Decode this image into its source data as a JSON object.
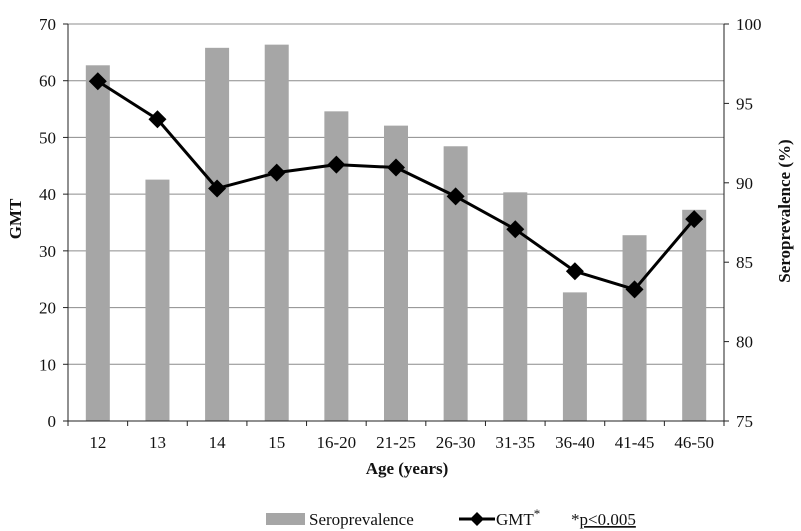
{
  "chart_data": {
    "type": "bar",
    "categories": [
      "12",
      "13",
      "14",
      "15",
      "16-20",
      "21-25",
      "26-30",
      "31-35",
      "36-40",
      "41-45",
      "46-50"
    ],
    "series": [
      {
        "name": "Seroprevalence",
        "type": "bar",
        "axis": "right",
        "values": [
          97.4,
          90.2,
          98.5,
          98.7,
          94.5,
          93.6,
          92.3,
          89.4,
          83.1,
          86.7,
          88.3
        ]
      },
      {
        "name": "GMT",
        "type": "line",
        "axis": "left",
        "marker": "diamond",
        "values": [
          59.9,
          53.2,
          41.0,
          43.8,
          45.2,
          44.7,
          39.6,
          33.8,
          26.4,
          23.2,
          35.6
        ]
      }
    ],
    "xlabel": "Age (years)",
    "ylabel": "GMT",
    "y2label": "Seroprevalence (%)",
    "ylim": [
      0,
      70
    ],
    "y2lim": [
      75,
      100
    ],
    "yticks": [
      "0",
      "10",
      "20",
      "30",
      "40",
      "50",
      "60",
      "70"
    ],
    "y2ticks": [
      "75",
      "80",
      "85",
      "90",
      "95",
      "100"
    ],
    "grid": "horizontal",
    "legend_position": "bottom",
    "legend": {
      "bar_label": "Seroprevalence",
      "line_label": "GMT",
      "line_marker_sup": "*",
      "note_star": "*",
      "note_text": "p<0.005"
    },
    "colors": {
      "bar": "#a6a6a6",
      "line": "#000000",
      "grid": "#8c8c8c"
    }
  }
}
